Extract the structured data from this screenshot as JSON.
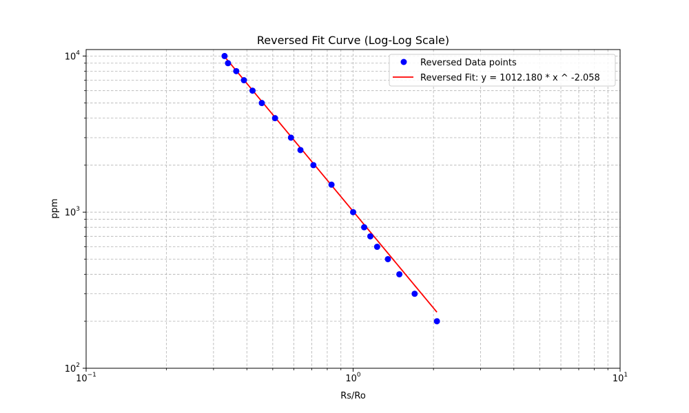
{
  "chart_data": {
    "type": "scatter",
    "title": "Reversed Fit Curve (Log-Log Scale)",
    "xlabel": "Rs/Ro",
    "ylabel": "ppm",
    "xscale": "log",
    "yscale": "log",
    "xlim": [
      0.1,
      10
    ],
    "ylim": [
      100,
      11000
    ],
    "grid": "both, major and minor, dashed",
    "legend_position": "top-right",
    "x_ticks": [
      {
        "base": "10",
        "exp": "−1",
        "value": 0.1
      },
      {
        "base": "10",
        "exp": "0",
        "value": 1
      },
      {
        "base": "10",
        "exp": "1",
        "value": 10
      }
    ],
    "y_ticks": [
      {
        "base": "10",
        "exp": "2",
        "value": 100
      },
      {
        "base": "10",
        "exp": "3",
        "value": 1000
      },
      {
        "base": "10",
        "exp": "4",
        "value": 10000
      }
    ],
    "series": [
      {
        "name": "Reversed Data points",
        "kind": "scatter",
        "color": "#0000ff",
        "points": [
          [
            0.33,
            10000
          ],
          [
            0.34,
            9000
          ],
          [
            0.365,
            8000
          ],
          [
            0.39,
            7000
          ],
          [
            0.42,
            6000
          ],
          [
            0.455,
            5000
          ],
          [
            0.51,
            4000
          ],
          [
            0.585,
            3000
          ],
          [
            0.635,
            2500
          ],
          [
            0.71,
            2000
          ],
          [
            0.83,
            1500
          ],
          [
            1.0,
            1000
          ],
          [
            1.1,
            800
          ],
          [
            1.16,
            700
          ],
          [
            1.23,
            600
          ],
          [
            1.35,
            500
          ],
          [
            1.49,
            400
          ],
          [
            1.7,
            300
          ],
          [
            2.06,
            200
          ]
        ]
      },
      {
        "name": "Reversed Fit: y = 1012.180 * x ^ -2.058",
        "kind": "line",
        "color": "#ff0000",
        "function": {
          "a": 1012.18,
          "b": -2.058
        },
        "x_range": [
          0.33,
          2.06
        ]
      }
    ]
  }
}
